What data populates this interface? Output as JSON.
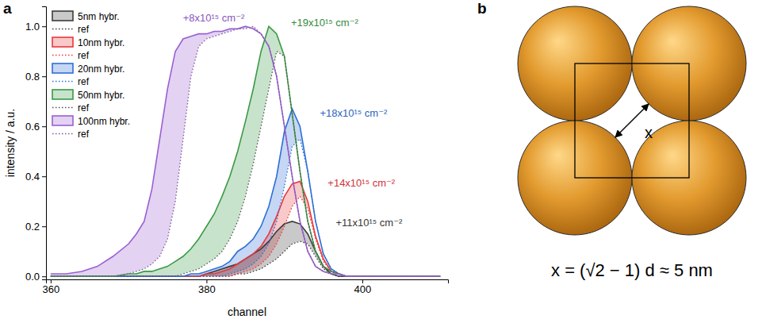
{
  "chart_data": {
    "type": "line",
    "panel_label": "a",
    "x_label": "channel",
    "y_label": "intensity / a.u.",
    "xlim": [
      359.4,
      411
    ],
    "xticks": [
      360,
      380,
      400
    ],
    "ylim": [
      -0.012,
      1.08
    ],
    "yticks": [
      {
        "value": 0,
        "label": "0.0"
      },
      {
        "value": 0.2,
        "label": "0.2"
      },
      {
        "value": 0.4,
        "label": "0.4"
      },
      {
        "value": 0.6,
        "label": "0.6"
      },
      {
        "value": 0.8,
        "label": "0.8"
      },
      {
        "value": 1,
        "label": "1.0"
      }
    ],
    "legend": "upper left",
    "x": [
      360,
      362,
      364,
      366,
      368,
      370,
      371,
      372,
      373,
      374,
      375,
      376,
      377,
      378,
      379,
      380,
      381,
      382,
      383,
      384,
      385,
      386,
      387,
      388,
      389,
      390,
      391,
      392,
      393,
      394,
      395,
      396,
      397,
      398,
      399,
      400,
      402,
      404,
      406,
      410
    ],
    "series": [
      {
        "name": "5nm hybr.",
        "type": "area",
        "color": "#3c3c3c",
        "line_style": "solid",
        "annotation": "+11x10¹⁵ cm⁻²",
        "values": [
          0,
          0,
          0,
          0,
          0,
          0,
          0,
          0,
          0,
          0,
          0,
          0,
          0,
          0,
          0,
          0.01,
          0.02,
          0.03,
          0.04,
          0.05,
          0.07,
          0.09,
          0.11,
          0.14,
          0.18,
          0.21,
          0.22,
          0.21,
          0.17,
          0.1,
          0.04,
          0.01,
          0,
          0,
          0,
          0,
          0,
          0,
          0,
          0
        ]
      },
      {
        "name": "ref",
        "type": "line",
        "color": "#3c3c3c",
        "line_style": "dotted",
        "values": [
          0,
          0,
          0,
          0,
          0,
          0,
          0,
          0,
          0,
          0,
          0,
          0,
          0,
          0,
          0,
          0,
          0,
          0,
          0,
          0.01,
          0.01,
          0.02,
          0.03,
          0.05,
          0.07,
          0.1,
          0.13,
          0.14,
          0.13,
          0.08,
          0.03,
          0.01,
          0,
          0,
          0,
          0,
          0,
          0,
          0,
          0
        ]
      },
      {
        "name": "10nm hybr.",
        "type": "area",
        "color": "#e8383d",
        "line_style": "solid",
        "annotation": "+14x10¹⁵ cm⁻²",
        "values": [
          0,
          0,
          0,
          0,
          0,
          0,
          0,
          0,
          0,
          0,
          0,
          0,
          0,
          0,
          0,
          0.01,
          0.01,
          0.02,
          0.03,
          0.05,
          0.07,
          0.09,
          0.12,
          0.17,
          0.24,
          0.32,
          0.37,
          0.38,
          0.3,
          0.16,
          0.07,
          0.02,
          0.01,
          0,
          0,
          0,
          0,
          0,
          0,
          0
        ]
      },
      {
        "name": "ref",
        "type": "line",
        "color": "#e8383d",
        "line_style": "dotted",
        "values": [
          0,
          0,
          0,
          0,
          0,
          0,
          0,
          0,
          0,
          0,
          0,
          0,
          0,
          0,
          0,
          0,
          0,
          0,
          0,
          0.01,
          0.02,
          0.03,
          0.05,
          0.08,
          0.13,
          0.2,
          0.28,
          0.32,
          0.27,
          0.15,
          0.06,
          0.02,
          0.01,
          0,
          0,
          0,
          0,
          0,
          0,
          0
        ]
      },
      {
        "name": "20nm hybr.",
        "type": "area",
        "color": "#2f6fd6",
        "line_style": "solid",
        "annotation": "+18x10¹⁵ cm⁻²",
        "values": [
          0,
          0,
          0,
          0,
          0,
          0,
          0,
          0,
          0,
          0,
          0,
          0,
          0,
          0.01,
          0.01,
          0.02,
          0.03,
          0.04,
          0.06,
          0.1,
          0.12,
          0.15,
          0.2,
          0.28,
          0.4,
          0.58,
          0.67,
          0.6,
          0.42,
          0.22,
          0.09,
          0.03,
          0.01,
          0,
          0,
          0,
          0,
          0,
          0,
          0
        ]
      },
      {
        "name": "ref",
        "type": "line",
        "color": "#2f6fd6",
        "line_style": "dotted",
        "values": [
          0,
          0,
          0,
          0,
          0,
          0,
          0,
          0,
          0,
          0,
          0,
          0,
          0,
          0,
          0,
          0,
          0,
          0,
          0.01,
          0.02,
          0.03,
          0.05,
          0.08,
          0.13,
          0.22,
          0.36,
          0.52,
          0.55,
          0.42,
          0.22,
          0.09,
          0.03,
          0.01,
          0,
          0,
          0,
          0,
          0,
          0,
          0
        ]
      },
      {
        "name": "50nm hybr.",
        "type": "area",
        "color": "#3a9a45",
        "line_style": "solid",
        "annotation": "+19x10¹⁵ cm⁻²",
        "values": [
          0,
          0,
          0,
          0,
          0,
          0.01,
          0.01,
          0.02,
          0.02,
          0.03,
          0.04,
          0.06,
          0.08,
          0.11,
          0.15,
          0.2,
          0.25,
          0.32,
          0.4,
          0.5,
          0.62,
          0.75,
          0.9,
          1,
          0.97,
          0.88,
          0.65,
          0.42,
          0.22,
          0.1,
          0.04,
          0.02,
          0.01,
          0,
          0,
          0,
          0,
          0,
          0,
          0
        ]
      },
      {
        "name": "ref",
        "type": "line",
        "color": "#555555",
        "line_style": "dotted",
        "values": [
          0,
          0,
          0,
          0,
          0,
          0,
          0,
          0,
          0,
          0,
          0,
          0,
          0.01,
          0.02,
          0.03,
          0.05,
          0.07,
          0.1,
          0.15,
          0.22,
          0.32,
          0.45,
          0.6,
          0.75,
          0.9,
          0.88,
          0.65,
          0.42,
          0.22,
          0.1,
          0.04,
          0.02,
          0.01,
          0,
          0,
          0,
          0,
          0,
          0,
          0
        ]
      },
      {
        "name": "100nm hybr.",
        "type": "area",
        "color": "#9a5fd2",
        "line_style": "solid",
        "annotation": "+8x10¹⁵ cm⁻²",
        "values": [
          0.01,
          0.01,
          0.02,
          0.04,
          0.08,
          0.13,
          0.17,
          0.22,
          0.35,
          0.55,
          0.75,
          0.9,
          0.95,
          0.96,
          0.97,
          0.97,
          0.98,
          0.98,
          0.99,
          0.99,
          1,
          0.99,
          0.97,
          0.92,
          0.8,
          0.6,
          0.4,
          0.22,
          0.1,
          0.04,
          0.02,
          0.01,
          0.01,
          0,
          0,
          0,
          0,
          0,
          0,
          0
        ]
      },
      {
        "name": "ref",
        "type": "line",
        "color": "#7a5a9a",
        "line_style": "dotted",
        "values": [
          0,
          0,
          0,
          0,
          0,
          0.01,
          0.02,
          0.03,
          0.05,
          0.08,
          0.15,
          0.3,
          0.55,
          0.8,
          0.92,
          0.95,
          0.96,
          0.97,
          0.98,
          0.99,
          0.99,
          1,
          0.97,
          0.92,
          0.8,
          0.6,
          0.4,
          0.22,
          0.1,
          0.04,
          0.02,
          0.01,
          0,
          0,
          0,
          0,
          0,
          0,
          0,
          0
        ]
      }
    ]
  },
  "diagram": {
    "panel_label": "b",
    "distance_label": "x",
    "formula": "x = (√2 − 1) d ≈ 5 nm"
  }
}
